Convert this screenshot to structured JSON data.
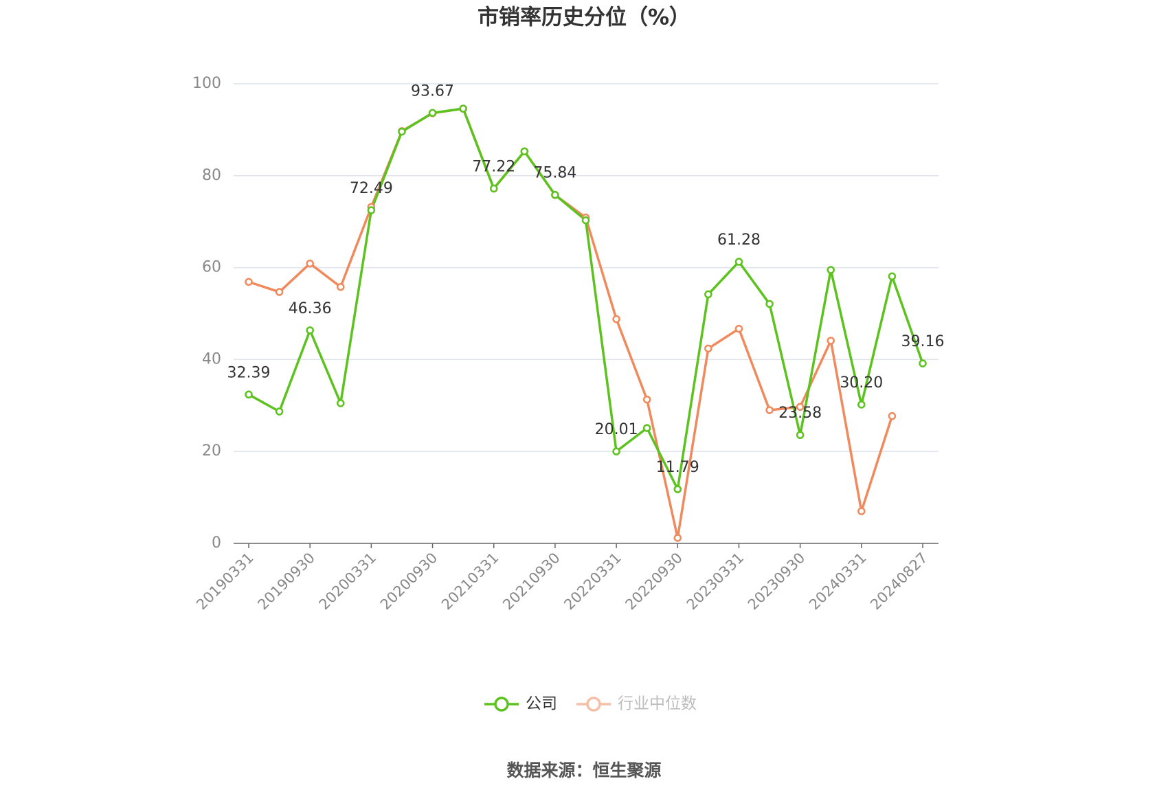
{
  "chart_data": {
    "type": "line",
    "title": "市销率历史分位（%）",
    "categories": [
      "20190331",
      null,
      "20190930",
      null,
      "20200331",
      null,
      "20200930",
      null,
      "20210331",
      null,
      "20210930",
      null,
      "20220331",
      null,
      "20220930",
      null,
      "20230331",
      null,
      "20230930",
      null,
      "20240331",
      null,
      "20240827"
    ],
    "series": [
      {
        "name": "公司",
        "color": "#5cc21e",
        "values": [
          32.39,
          28.7,
          46.36,
          30.5,
          72.49,
          89.6,
          93.67,
          94.6,
          77.22,
          85.3,
          75.84,
          70.3,
          20.01,
          25.1,
          11.79,
          54.2,
          61.28,
          52.1,
          23.58,
          59.5,
          30.2,
          58.1,
          39.16
        ],
        "value_labels": [
          "32.39",
          null,
          "46.36",
          null,
          "72.49",
          null,
          "93.67",
          null,
          "77.22",
          null,
          "75.84",
          null,
          "20.01",
          null,
          "11.79",
          null,
          "61.28",
          null,
          "23.58",
          null,
          "30.20",
          null,
          "39.16"
        ]
      },
      {
        "name": "行业中位数",
        "color": "#f08a5d",
        "values": [
          56.9,
          54.7,
          60.9,
          55.8,
          73.2,
          89.7,
          93.6,
          94.6,
          77.2,
          85.3,
          75.8,
          70.9,
          48.8,
          31.3,
          1.2,
          42.4,
          46.7,
          29.0,
          29.7,
          44.1,
          7.0,
          27.7,
          null
        ]
      }
    ],
    "ylim": [
      0,
      100
    ],
    "yticks": [
      0,
      20,
      40,
      60,
      80,
      100
    ],
    "grid": true,
    "legend": "bottom",
    "source": "数据来源：恒生聚源"
  }
}
